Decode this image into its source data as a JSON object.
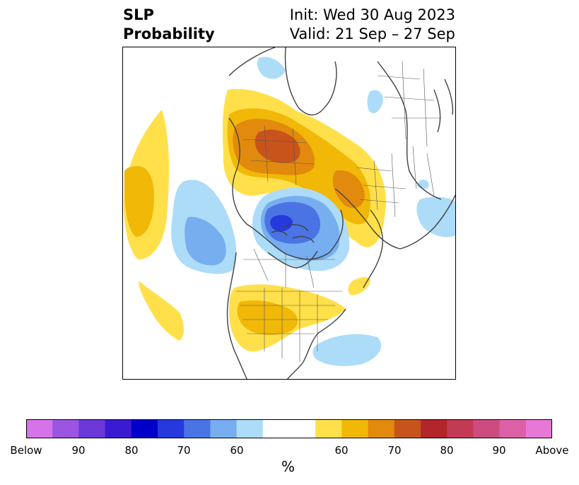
{
  "title": {
    "left_line1": "SLP",
    "left_line2": "Probability",
    "init": "Init: Wed 30 Aug 2023",
    "valid": "Valid: 21 Sep – 27 Sep"
  },
  "colorbar": {
    "colors": [
      "#d474e8",
      "#9b55e0",
      "#6a39d8",
      "#3a1bd2",
      "#0000c8",
      "#2539dc",
      "#4a74e4",
      "#76aef0",
      "#acdcf8",
      "#ffffff",
      "#ffffff",
      "#ffe04a",
      "#f1b808",
      "#e18a0e",
      "#c8541c",
      "#b0262a",
      "#c23a54",
      "#cd4c80",
      "#dc60a8",
      "#e878d6"
    ],
    "labels": [
      "Below",
      "90",
      "80",
      "70",
      "60",
      "60",
      "70",
      "80",
      "90",
      "Above"
    ],
    "unit": "%"
  },
  "map": {
    "fill_colors": {
      "light_blue": "#acdcf8",
      "mid_blue": "#76aef0",
      "blue": "#4a74e4",
      "dark_blue": "#2539dc",
      "yellow": "#ffe04a",
      "gold": "#f1b808",
      "orange": "#e18a0e",
      "dark_orange": "#c8541c"
    },
    "coastline_color": "#404040"
  }
}
